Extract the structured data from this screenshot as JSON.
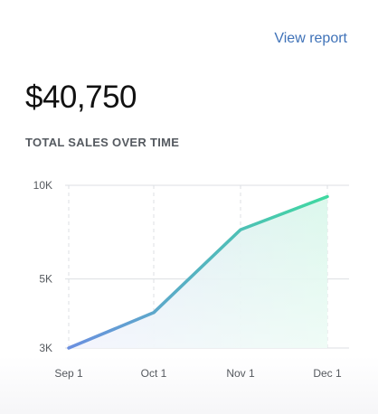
{
  "header": {
    "view_report_label": "View report"
  },
  "summary": {
    "total_amount": "$40,750",
    "section_title": "TOTAL SALES OVER TIME"
  },
  "colors": {
    "link": "#3f72b8",
    "line_start": "#6b8fe0",
    "line_end": "#3fd9a0",
    "grid": "#dcdfe3",
    "text": "#111111"
  },
  "chart_data": {
    "type": "area",
    "title": "",
    "xlabel": "",
    "ylabel": "",
    "categories": [
      "Sep 1",
      "Oct 1",
      "Nov 1",
      "Dec 1"
    ],
    "y_tick_labels": [
      "3K",
      "5K",
      "10K"
    ],
    "y_tick_values": [
      3000,
      5000,
      10000
    ],
    "y_scale": "log",
    "ylim": [
      3000,
      10000
    ],
    "grid": true,
    "series": [
      {
        "values": [
          3000,
          3900,
          7200,
          9200
        ]
      }
    ]
  }
}
